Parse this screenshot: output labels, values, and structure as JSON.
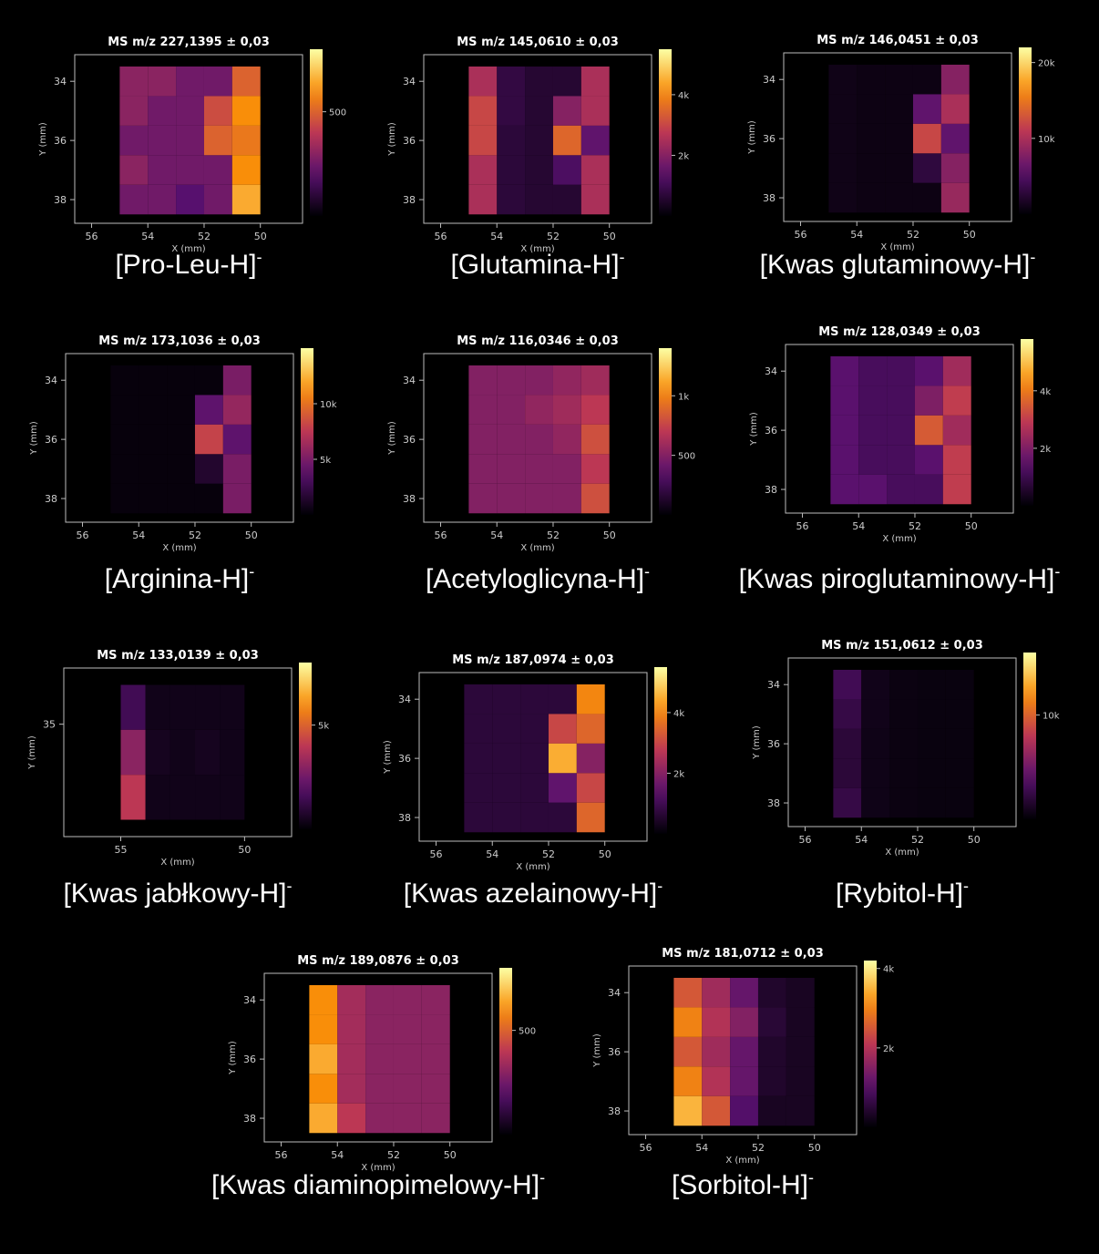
{
  "chart_data": [
    {
      "type": "heatmap",
      "title": "MS m/z 227,1395 ± 0,03",
      "label": "[Pro-Leu-H]",
      "label_sup": "-",
      "xlabel": "X (mm)",
      "ylabel": "Y (mm)",
      "colormap": "inferno",
      "x": [
        54.5,
        53.5,
        52.5,
        51.5,
        50.5
      ],
      "y": [
        34,
        35,
        36,
        37,
        38
      ],
      "values": [
        [
          300,
          300,
          250,
          250,
          500
        ],
        [
          300,
          250,
          250,
          450,
          600
        ],
        [
          250,
          250,
          250,
          500,
          550
        ],
        [
          300,
          250,
          250,
          250,
          600
        ],
        [
          250,
          250,
          200,
          250,
          650
        ]
      ],
      "xlim": [
        56.6,
        48.5
      ],
      "xticks": [
        56,
        54,
        52,
        50
      ],
      "ylim": [
        33.1,
        38.8
      ],
      "yticks": [
        34,
        36,
        38
      ],
      "clim": [
        0,
        800
      ],
      "cticks": [
        500
      ]
    },
    {
      "type": "heatmap",
      "title": "MS m/z 145,0610 ± 0,03",
      "label": "[Glutamina-H]",
      "label_sup": "-",
      "xlabel": "X (mm)",
      "ylabel": "Y (mm)",
      "colormap": "inferno",
      "x": [
        54.5,
        53.5,
        52.5,
        51.5,
        50.5
      ],
      "y": [
        34,
        35,
        36,
        37,
        38
      ],
      "values": [
        [
          2500,
          800,
          600,
          600,
          2500
        ],
        [
          3000,
          800,
          600,
          2000,
          2500
        ],
        [
          3000,
          700,
          600,
          3500,
          1500
        ],
        [
          2500,
          700,
          600,
          1200,
          2500
        ],
        [
          2500,
          700,
          600,
          600,
          2500
        ]
      ],
      "xlim": [
        56.6,
        48.5
      ],
      "xticks": [
        56,
        54,
        52,
        50
      ],
      "ylim": [
        33.1,
        38.8
      ],
      "yticks": [
        34,
        36,
        38
      ],
      "clim": [
        0,
        5500
      ],
      "cticks": [
        {
          "value": 2000,
          "label": "2k"
        },
        {
          "value": 4000,
          "label": "4k"
        }
      ]
    },
    {
      "type": "heatmap",
      "title": "MS m/z 146,0451 ± 0,03",
      "label": "[Kwas glutaminowy-H]",
      "label_sup": "-",
      "xlabel": "X (mm)",
      "ylabel": "Y (mm)",
      "colormap": "inferno",
      "x": [
        54.5,
        53.5,
        52.5,
        51.5,
        50.5
      ],
      "y": [
        34,
        35,
        36,
        37,
        38
      ],
      "values": [
        [
          1000,
          800,
          800,
          800,
          8000
        ],
        [
          1000,
          800,
          800,
          6000,
          10000
        ],
        [
          1000,
          800,
          800,
          12000,
          6000
        ],
        [
          1000,
          800,
          800,
          3000,
          8000
        ],
        [
          1000,
          800,
          800,
          800,
          9000
        ]
      ],
      "xlim": [
        56.6,
        48.5
      ],
      "xticks": [
        56,
        54,
        52,
        50
      ],
      "ylim": [
        33.1,
        38.8
      ],
      "yticks": [
        34,
        36,
        38
      ],
      "clim": [
        0,
        22000
      ],
      "cticks": [
        {
          "value": 10000,
          "label": "10k"
        },
        {
          "value": 20000,
          "label": "20k"
        }
      ]
    },
    {
      "type": "heatmap",
      "title": "MS m/z 173,1036 ± 0,03",
      "label": "[Arginina-H]",
      "label_sup": "-",
      "xlabel": "X (mm)",
      "ylabel": "Y (mm)",
      "colormap": "inferno",
      "x": [
        54.5,
        53.5,
        52.5,
        51.5,
        50.5
      ],
      "y": [
        34,
        35,
        36,
        37,
        38
      ],
      "values": [
        [
          300,
          300,
          300,
          300,
          5000
        ],
        [
          300,
          300,
          300,
          4000,
          6000
        ],
        [
          300,
          300,
          300,
          8000,
          4000
        ],
        [
          300,
          300,
          300,
          1500,
          5000
        ],
        [
          300,
          300,
          300,
          300,
          5000
        ]
      ],
      "xlim": [
        56.6,
        48.5
      ],
      "xticks": [
        56,
        54,
        52,
        50
      ],
      "ylim": [
        33.1,
        38.8
      ],
      "yticks": [
        34,
        36,
        38
      ],
      "clim": [
        0,
        15000
      ],
      "cticks": [
        {
          "value": 5000,
          "label": "5k"
        },
        {
          "value": 10000,
          "label": "10k"
        }
      ]
    },
    {
      "type": "heatmap",
      "title": "MS m/z 116,0346 ± 0,03",
      "label": "[Acetyloglicyna-H]",
      "label_sup": "-",
      "xlabel": "X (mm)",
      "ylabel": "Y (mm)",
      "colormap": "inferno",
      "x": [
        54.5,
        53.5,
        52.5,
        51.5,
        50.5
      ],
      "y": [
        34,
        35,
        36,
        37,
        38
      ],
      "values": [
        [
          500,
          500,
          500,
          550,
          600
        ],
        [
          500,
          500,
          550,
          600,
          700
        ],
        [
          500,
          500,
          500,
          550,
          800
        ],
        [
          500,
          500,
          500,
          500,
          700
        ],
        [
          500,
          500,
          500,
          500,
          800
        ]
      ],
      "xlim": [
        56.6,
        48.5
      ],
      "xticks": [
        56,
        54,
        52,
        50
      ],
      "ylim": [
        33.1,
        38.8
      ],
      "yticks": [
        34,
        36,
        38
      ],
      "clim": [
        0,
        1400
      ],
      "cticks": [
        500,
        {
          "value": 1000,
          "label": "1k"
        }
      ]
    },
    {
      "type": "heatmap",
      "title": "MS m/z 128,0349 ± 0,03",
      "label": "[Kwas piroglutaminowy-H]",
      "label_sup": "-",
      "xlabel": "X (mm)",
      "ylabel": "Y (mm)",
      "colormap": "inferno",
      "x": [
        54.5,
        53.5,
        52.5,
        51.5,
        50.5
      ],
      "y": [
        34,
        35,
        36,
        37,
        38
      ],
      "values": [
        [
          1500,
          1200,
          1200,
          1500,
          2500
        ],
        [
          1500,
          1200,
          1200,
          2000,
          3000
        ],
        [
          1500,
          1200,
          1200,
          3500,
          2500
        ],
        [
          1500,
          1200,
          1200,
          1500,
          3000
        ],
        [
          1500,
          1500,
          1200,
          1200,
          3000
        ]
      ],
      "xlim": [
        56.6,
        48.5
      ],
      "xticks": [
        56,
        54,
        52,
        50
      ],
      "ylim": [
        33.1,
        38.8
      ],
      "yticks": [
        34,
        36,
        38
      ],
      "clim": [
        0,
        5800
      ],
      "cticks": [
        {
          "value": 2000,
          "label": "2k"
        },
        {
          "value": 4000,
          "label": "4k"
        }
      ]
    },
    {
      "type": "heatmap",
      "title": "MS m/z 133,0139 ± 0,03",
      "label": "[Kwas jabłkowy-H]",
      "label_sup": "-",
      "xlabel": "X (mm)",
      "ylabel": "Y (mm)",
      "colormap": "inferno",
      "x": [
        54.5,
        53.5,
        52.5,
        51.5,
        50.5
      ],
      "y": [
        34.7,
        35.5,
        36.3
      ],
      "values": [
        [
          1500,
          400,
          400,
          400,
          400
        ],
        [
          3000,
          500,
          400,
          500,
          400
        ],
        [
          4000,
          400,
          400,
          400,
          400
        ]
      ],
      "xlim": [
        57.3,
        48.1
      ],
      "xticks": [
        55,
        50
      ],
      "ylim": [
        34,
        37
      ],
      "yticks": [
        35
      ],
      "clim": [
        0,
        8000
      ],
      "cticks": [
        {
          "value": 5000,
          "label": "5k"
        }
      ]
    },
    {
      "type": "heatmap",
      "title": "MS m/z 187,0974 ± 0,03",
      "label": "[Kwas azelainowy-H]",
      "label_sup": "-",
      "xlabel": "X (mm)",
      "ylabel": "Y (mm)",
      "colormap": "inferno",
      "x": [
        54.5,
        53.5,
        52.5,
        51.5,
        50.5
      ],
      "y": [
        34,
        35,
        36,
        37,
        38
      ],
      "values": [
        [
          700,
          700,
          700,
          700,
          4000
        ],
        [
          700,
          700,
          700,
          3000,
          3500
        ],
        [
          700,
          700,
          700,
          4500,
          2000
        ],
        [
          700,
          700,
          700,
          1500,
          3000
        ],
        [
          700,
          700,
          700,
          700,
          3500
        ]
      ],
      "xlim": [
        56.6,
        48.5
      ],
      "xticks": [
        56,
        54,
        52,
        50
      ],
      "ylim": [
        33.1,
        38.8
      ],
      "yticks": [
        34,
        36,
        38
      ],
      "clim": [
        0,
        5500
      ],
      "cticks": [
        {
          "value": 2000,
          "label": "2k"
        },
        {
          "value": 4000,
          "label": "4k"
        }
      ]
    },
    {
      "type": "heatmap",
      "title": "MS m/z 151,0612 ± 0,03",
      "label": "[Rybitol-H]",
      "label_sup": "-",
      "xlabel": "X (mm)",
      "ylabel": "Y (mm)",
      "colormap": "inferno",
      "x": [
        54.5,
        53.5,
        52.5,
        51.5,
        50.5
      ],
      "y": [
        34,
        35,
        36,
        37,
        38
      ],
      "values": [
        [
          3000,
          800,
          500,
          400,
          400
        ],
        [
          2500,
          800,
          500,
          400,
          400
        ],
        [
          2000,
          700,
          500,
          400,
          400
        ],
        [
          2000,
          700,
          500,
          400,
          400
        ],
        [
          2500,
          700,
          500,
          400,
          400
        ]
      ],
      "xlim": [
        56.6,
        48.5
      ],
      "xticks": [
        56,
        54,
        52,
        50
      ],
      "ylim": [
        33.1,
        38.8
      ],
      "yticks": [
        34,
        36,
        38
      ],
      "clim": [
        0,
        16000
      ],
      "cticks": [
        {
          "value": 10000,
          "label": "10k"
        }
      ]
    },
    {
      "type": "heatmap",
      "title": "MS m/z 189,0876 ± 0,03",
      "label": "[Kwas diaminopimelowy-H]",
      "label_sup": "-",
      "xlabel": "X (mm)",
      "ylabel": "Y (mm)",
      "colormap": "inferno",
      "x": [
        54.5,
        53.5,
        52.5,
        51.5,
        50.5
      ],
      "y": [
        34,
        35,
        36,
        37,
        38
      ],
      "values": [
        [
          600,
          350,
          300,
          300,
          300
        ],
        [
          600,
          350,
          300,
          300,
          300
        ],
        [
          650,
          350,
          300,
          300,
          300
        ],
        [
          600,
          350,
          300,
          300,
          300
        ],
        [
          650,
          400,
          300,
          300,
          300
        ]
      ],
      "xlim": [
        56.6,
        48.5
      ],
      "xticks": [
        56,
        54,
        52,
        50
      ],
      "ylim": [
        33.1,
        38.8
      ],
      "yticks": [
        34,
        36,
        38
      ],
      "clim": [
        0,
        800
      ],
      "cticks": [
        500
      ]
    },
    {
      "type": "heatmap",
      "title": "MS m/z 181,0712 ± 0,03",
      "label": "[Sorbitol-H]",
      "label_sup": "-",
      "xlabel": "X (mm)",
      "ylabel": "Y (mm)",
      "colormap": "inferno",
      "x": [
        54.5,
        53.5,
        52.5,
        51.5,
        50.5
      ],
      "y": [
        34,
        35,
        36,
        37,
        38
      ],
      "values": [
        [
          2500,
          1800,
          1200,
          400,
          300
        ],
        [
          3000,
          2000,
          1500,
          500,
          300
        ],
        [
          2500,
          1800,
          1200,
          400,
          300
        ],
        [
          3000,
          2000,
          1200,
          400,
          300
        ],
        [
          3500,
          2500,
          1000,
          300,
          300
        ]
      ],
      "xlim": [
        56.6,
        48.5
      ],
      "xticks": [
        56,
        54,
        52,
        50
      ],
      "ylim": [
        33.1,
        38.8
      ],
      "yticks": [
        34,
        36,
        38
      ],
      "clim": [
        0,
        4200
      ],
      "cticks": [
        {
          "value": 2000,
          "label": "2k"
        },
        {
          "value": 4000,
          "label": "4k"
        }
      ]
    }
  ]
}
